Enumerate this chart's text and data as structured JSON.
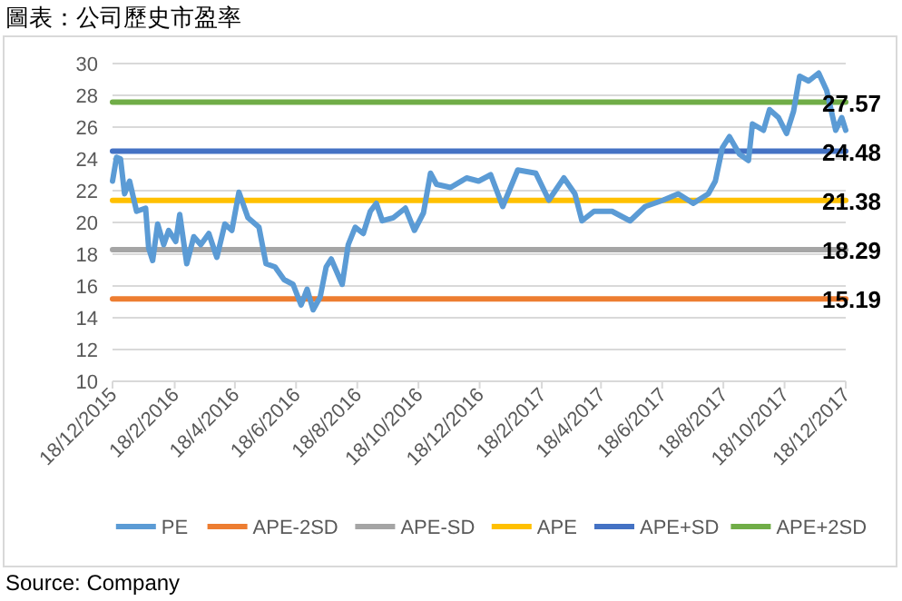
{
  "chart_data": {
    "type": "line",
    "title": "圖表：公司歷史市盈率",
    "xlim": [
      "2015-12-18",
      "2017-12-18"
    ],
    "xticks": [
      {
        "value": "2015-12-18",
        "label": "18/12/2015"
      },
      {
        "value": "2016-02-18",
        "label": "18/2/2016"
      },
      {
        "value": "2016-04-18",
        "label": "18/4/2016"
      },
      {
        "value": "2016-06-18",
        "label": "18/6/2016"
      },
      {
        "value": "2016-08-18",
        "label": "18/8/2016"
      },
      {
        "value": "2016-10-18",
        "label": "18/10/2016"
      },
      {
        "value": "2016-12-18",
        "label": "18/12/2016"
      },
      {
        "value": "2017-02-18",
        "label": "18/2/2017"
      },
      {
        "value": "2017-04-18",
        "label": "18/4/2017"
      },
      {
        "value": "2017-06-18",
        "label": "18/6/2017"
      },
      {
        "value": "2017-08-18",
        "label": "18/8/2017"
      },
      {
        "value": "2017-10-18",
        "label": "18/10/2017"
      },
      {
        "value": "2017-12-18",
        "label": "18/12/2017"
      }
    ],
    "ylim": [
      10,
      30
    ],
    "yticks": [
      10,
      12,
      14,
      16,
      18,
      20,
      22,
      24,
      26,
      28,
      30
    ],
    "grid": "y",
    "legend": "bottom",
    "line_style": "solid",
    "annotations": [
      "Source: Company"
    ],
    "series": [
      {
        "name": "PE",
        "color": "#5b9bd5",
        "x": [
          "2015-12-18",
          "2015-12-22",
          "2015-12-26",
          "2015-12-30",
          "2016-01-04",
          "2016-01-11",
          "2016-01-20",
          "2016-01-23",
          "2016-01-27",
          "2016-02-01",
          "2016-02-07",
          "2016-02-12",
          "2016-02-19",
          "2016-02-23",
          "2016-03-01",
          "2016-03-08",
          "2016-03-15",
          "2016-03-23",
          "2016-03-31",
          "2016-04-08",
          "2016-04-15",
          "2016-04-22",
          "2016-05-01",
          "2016-05-12",
          "2016-05-19",
          "2016-05-28",
          "2016-06-06",
          "2016-06-15",
          "2016-06-23",
          "2016-06-29",
          "2016-07-05",
          "2016-07-12",
          "2016-07-18",
          "2016-07-23",
          "2016-08-03",
          "2016-08-09",
          "2016-08-16",
          "2016-08-24",
          "2016-08-31",
          "2016-09-06",
          "2016-09-12",
          "2016-09-23",
          "2016-10-05",
          "2016-10-14",
          "2016-10-23",
          "2016-10-30",
          "2016-11-05",
          "2016-11-19",
          "2016-12-05",
          "2016-12-17",
          "2016-12-29",
          "2017-01-10",
          "2017-01-25",
          "2017-02-12",
          "2017-02-25",
          "2017-03-12",
          "2017-03-23",
          "2017-03-30",
          "2017-04-11",
          "2017-04-29",
          "2017-05-17",
          "2017-06-01",
          "2017-06-19",
          "2017-07-04",
          "2017-07-19",
          "2017-08-03",
          "2017-08-10",
          "2017-08-17",
          "2017-08-24",
          "2017-09-03",
          "2017-09-12",
          "2017-09-16",
          "2017-09-27",
          "2017-10-03",
          "2017-10-12",
          "2017-10-20",
          "2017-10-27",
          "2017-11-02",
          "2017-11-11",
          "2017-11-21",
          "2017-11-29",
          "2017-12-08",
          "2017-12-14",
          "2017-12-18"
        ],
        "values": [
          22.6,
          24.1,
          24.0,
          21.8,
          22.6,
          20.7,
          20.9,
          18.4,
          17.6,
          19.9,
          18.6,
          19.5,
          18.8,
          20.5,
          17.4,
          19.1,
          18.6,
          19.3,
          17.8,
          19.9,
          19.5,
          21.9,
          20.3,
          19.7,
          17.4,
          17.2,
          16.4,
          16.1,
          14.8,
          15.8,
          14.5,
          15.3,
          17.2,
          17.7,
          16.1,
          18.6,
          19.7,
          19.3,
          20.7,
          21.2,
          20.1,
          20.3,
          20.9,
          19.5,
          20.6,
          23.1,
          22.4,
          22.2,
          22.8,
          22.6,
          23.0,
          21.0,
          23.3,
          23.1,
          21.4,
          22.8,
          21.8,
          20.1,
          20.7,
          20.7,
          20.1,
          21.0,
          21.4,
          21.8,
          21.2,
          21.8,
          22.6,
          24.7,
          25.4,
          24.3,
          23.9,
          26.2,
          25.8,
          27.1,
          26.6,
          25.6,
          27.0,
          29.2,
          28.9,
          29.4,
          28.3,
          25.8,
          26.6,
          25.8
        ]
      },
      {
        "name": "APE-2SD",
        "color": "#ed7d31",
        "x": [
          "2015-12-18",
          "2017-12-18"
        ],
        "values": [
          15.19,
          15.19
        ],
        "value_labels": [
          null,
          "15.19"
        ]
      },
      {
        "name": "APE-SD",
        "color": "#a5a5a5",
        "x": [
          "2015-12-18",
          "2017-12-18"
        ],
        "values": [
          18.29,
          18.29
        ],
        "value_labels": [
          null,
          "18.29"
        ]
      },
      {
        "name": "APE",
        "color": "#ffc000",
        "x": [
          "2015-12-18",
          "2017-12-18"
        ],
        "values": [
          21.38,
          21.38
        ],
        "value_labels": [
          null,
          "21.38"
        ]
      },
      {
        "name": "APE+SD",
        "color": "#4472c4",
        "x": [
          "2015-12-18",
          "2017-12-18"
        ],
        "values": [
          24.48,
          24.48
        ],
        "value_labels": [
          null,
          "24.48"
        ]
      },
      {
        "name": "APE+2SD",
        "color": "#70ad47",
        "x": [
          "2015-12-18",
          "2017-12-18"
        ],
        "values": [
          27.57,
          27.57
        ],
        "value_labels": [
          null,
          "27.57"
        ]
      }
    ]
  }
}
